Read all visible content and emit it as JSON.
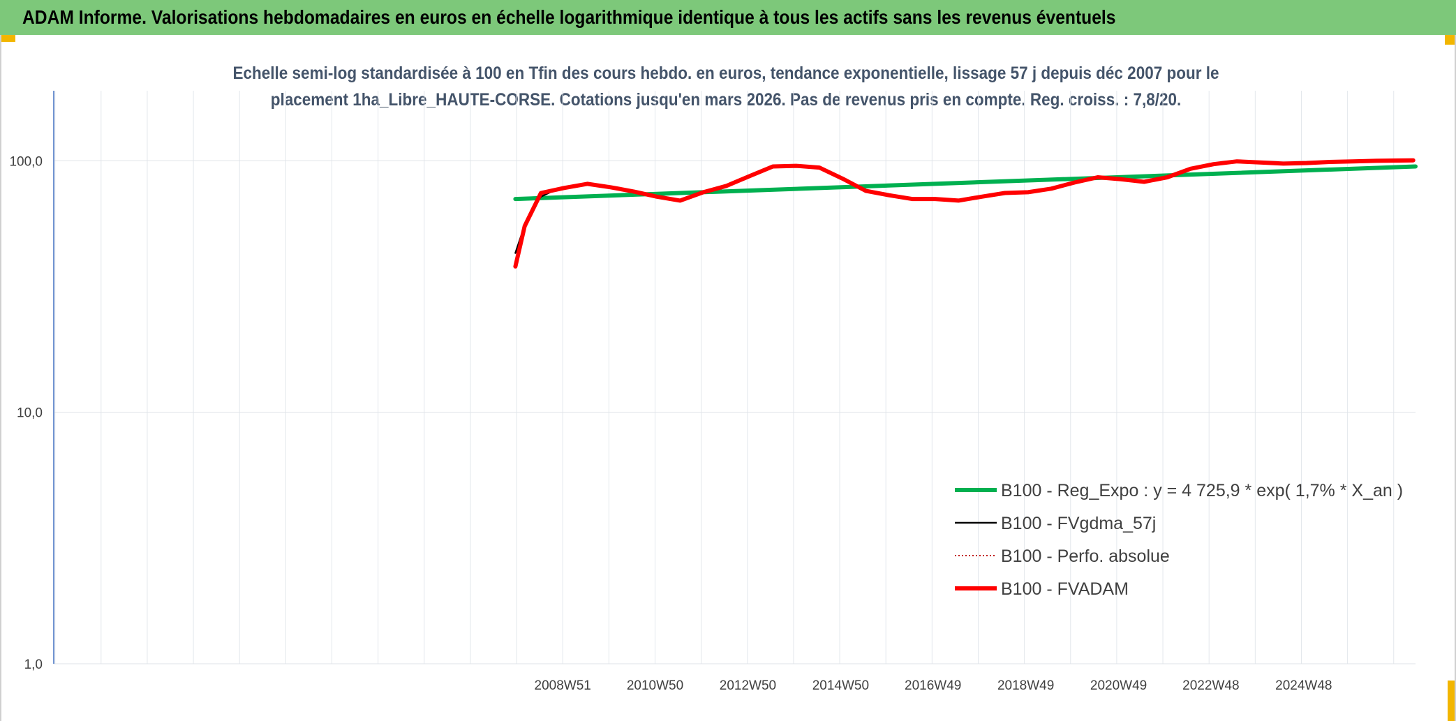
{
  "header": {
    "title": "ADAM Informe. Valorisations hebdomadaires en euros en échelle logarithmique identique à tous les actifs sans les revenus éventuels"
  },
  "chart_data": {
    "type": "line",
    "subtitle_line1": "Echelle semi-log standardisée à 100 en Tfin des cours hebdo. en euros, tendance exponentielle, lissage 57 j depuis déc 2007 pour le",
    "subtitle_line2": "placement 1ha_Libre_HAUTE-CORSE. Cotations jusqu'en mars 2026. Pas de revenus pris en compte. Reg. croiss. : 7,8/20.",
    "y_scale": "log",
    "ylim": [
      1,
      190
    ],
    "y_ticks": [
      {
        "value": 1,
        "label": "1,0"
      },
      {
        "value": 10,
        "label": "10,0"
      },
      {
        "value": 100,
        "label": "100,0"
      }
    ],
    "x_tick_labels": [
      "2008W51",
      "2010W50",
      "2012W50",
      "2014W50",
      "2016W49",
      "2018W49",
      "2020W49",
      "2022W48",
      "2024W48"
    ],
    "x_tick_years": [
      2008.97,
      2010.96,
      2012.96,
      2014.96,
      2016.95,
      2018.95,
      2020.95,
      2022.94,
      2024.94
    ],
    "xlim": [
      1998.0,
      2027.35
    ],
    "grid": true,
    "legend_position": "bottom-right",
    "series": [
      {
        "name": "B100 - Reg_Expo : y = 4 725,9 * exp( 1,7% *  X_an )",
        "color": "#00b050",
        "style": "solid-thick",
        "points": [
          [
            2007.95,
            70.5
          ],
          [
            2027.35,
            95.0
          ]
        ]
      },
      {
        "name": "B100 - FVgdma_57j",
        "color": "#000000",
        "style": "solid-thin",
        "points": [
          [
            2007.95,
            43
          ],
          [
            2008.1,
            52
          ],
          [
            2008.3,
            64
          ],
          [
            2008.5,
            72
          ],
          [
            2008.7,
            75
          ]
        ]
      },
      {
        "name": "B100 - Perfo. absolue",
        "color": "#c00000",
        "style": "dotted",
        "points": []
      },
      {
        "name": "B100 - FVADAM",
        "color": "#ff0000",
        "style": "solid-thick",
        "points": [
          [
            2007.95,
            38
          ],
          [
            2008.15,
            55
          ],
          [
            2008.5,
            74.5
          ],
          [
            2009.0,
            78
          ],
          [
            2009.5,
            81
          ],
          [
            2010.0,
            78.5
          ],
          [
            2010.5,
            75.5
          ],
          [
            2011.0,
            72
          ],
          [
            2011.5,
            69.5
          ],
          [
            2012.0,
            75
          ],
          [
            2012.5,
            79.5
          ],
          [
            2013.0,
            87
          ],
          [
            2013.5,
            95
          ],
          [
            2014.0,
            95.5
          ],
          [
            2014.5,
            94
          ],
          [
            2015.0,
            85
          ],
          [
            2015.5,
            76
          ],
          [
            2016.0,
            73
          ],
          [
            2016.5,
            70.5
          ],
          [
            2017.0,
            70.5
          ],
          [
            2017.5,
            69.5
          ],
          [
            2018.0,
            72
          ],
          [
            2018.5,
            74.5
          ],
          [
            2019.0,
            75
          ],
          [
            2019.5,
            77.5
          ],
          [
            2020.0,
            82
          ],
          [
            2020.5,
            86
          ],
          [
            2021.0,
            84.5
          ],
          [
            2021.5,
            82.5
          ],
          [
            2022.0,
            86
          ],
          [
            2022.5,
            93
          ],
          [
            2023.0,
            97
          ],
          [
            2023.5,
            99.5
          ],
          [
            2024.0,
            98.5
          ],
          [
            2024.5,
            97.5
          ],
          [
            2025.0,
            98
          ],
          [
            2025.5,
            99
          ],
          [
            2026.0,
            99.5
          ],
          [
            2026.5,
            100
          ],
          [
            2027.3,
            100.5
          ]
        ]
      }
    ]
  }
}
